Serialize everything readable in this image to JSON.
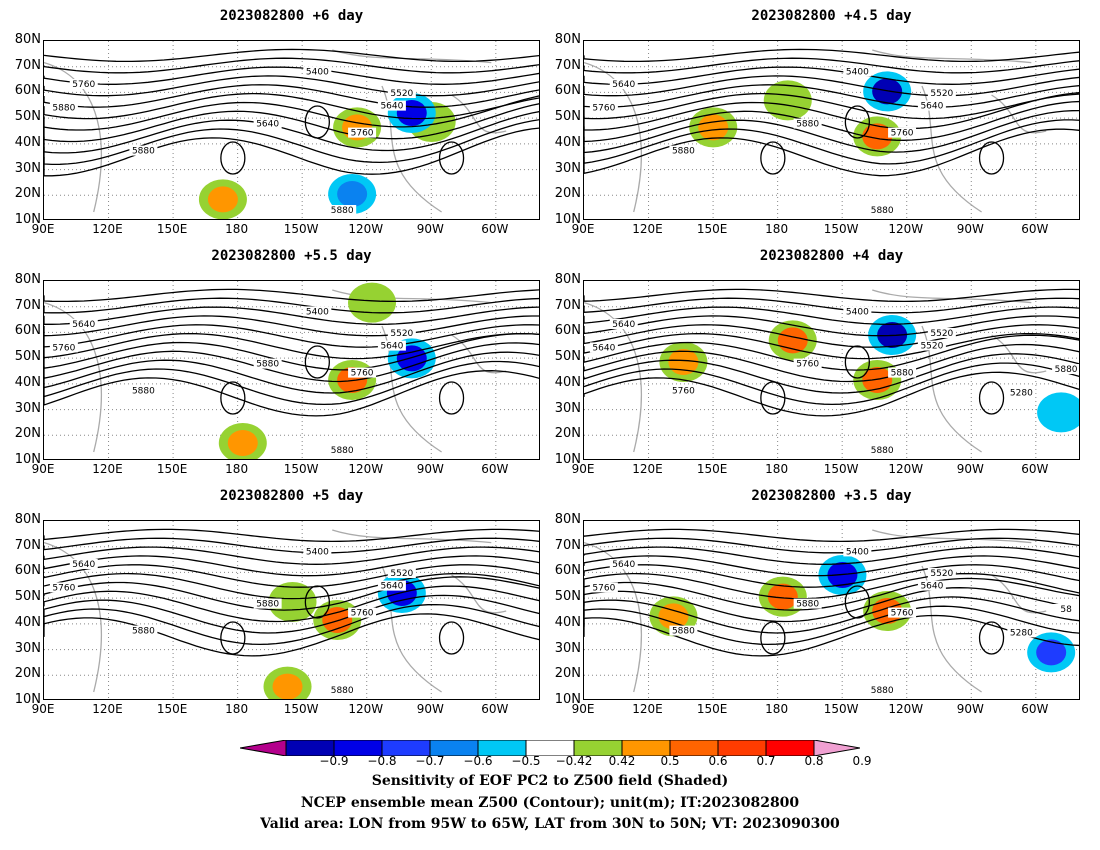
{
  "chart_data": [
    {
      "type": "heatmap",
      "title": "2023082800 +6 day",
      "lat_ticks": [
        "80N",
        "70N",
        "60N",
        "50N",
        "40N",
        "30N",
        "20N",
        "10N"
      ],
      "lon_ticks": [
        "90E",
        "120E",
        "150E",
        "180",
        "150W",
        "120W",
        "90W",
        "60W"
      ],
      "contour_labels": [
        "5400",
        "5520",
        "5640",
        "5760",
        "5880",
        "5640",
        "5760",
        "5880",
        "5880"
      ],
      "shaded": [
        {
          "x": 0.78,
          "y": 0.45,
          "val": 0.5
        },
        {
          "x": 0.36,
          "y": 0.88,
          "val": 0.6
        },
        {
          "x": 0.63,
          "y": 0.48,
          "val": 0.65
        },
        {
          "x": 0.74,
          "y": 0.4,
          "val": -0.8
        },
        {
          "x": 0.62,
          "y": 0.85,
          "val": -0.6
        }
      ]
    },
    {
      "type": "heatmap",
      "title": "2023082800 +4.5 day",
      "lat_ticks": [
        "80N",
        "70N",
        "60N",
        "50N",
        "40N",
        "30N",
        "20N",
        "10N"
      ],
      "lon_ticks": [
        "90E",
        "120E",
        "150E",
        "180",
        "150W",
        "120W",
        "90W",
        "60W"
      ],
      "contour_labels": [
        "5400",
        "5520",
        "5640",
        "5640",
        "5760",
        "5880",
        "5760",
        "5880",
        "5880"
      ],
      "shaded": [
        {
          "x": 0.61,
          "y": 0.28,
          "val": -0.85
        },
        {
          "x": 0.59,
          "y": 0.53,
          "val": 0.75
        },
        {
          "x": 0.26,
          "y": 0.48,
          "val": 0.65
        },
        {
          "x": 0.41,
          "y": 0.33,
          "val": 0.5
        }
      ]
    },
    {
      "type": "heatmap",
      "title": "2023082800 +5.5 day",
      "lat_ticks": [
        "80N",
        "70N",
        "60N",
        "50N",
        "40N",
        "30N",
        "20N",
        "10N"
      ],
      "lon_ticks": [
        "90E",
        "120E",
        "150E",
        "180",
        "150W",
        "120W",
        "90W",
        "60W"
      ],
      "contour_labels": [
        "5400",
        "5520",
        "5640",
        "5640",
        "5760",
        "5880",
        "5760",
        "5880",
        "5880"
      ],
      "shaded": [
        {
          "x": 0.74,
          "y": 0.43,
          "val": -0.8
        },
        {
          "x": 0.62,
          "y": 0.55,
          "val": 0.7
        },
        {
          "x": 0.66,
          "y": 0.12,
          "val": 0.5
        },
        {
          "x": 0.4,
          "y": 0.9,
          "val": 0.6
        }
      ]
    },
    {
      "type": "heatmap",
      "title": "2023082800 +4 day",
      "lat_ticks": [
        "80N",
        "70N",
        "60N",
        "50N",
        "40N",
        "30N",
        "20N",
        "10N"
      ],
      "lon_ticks": [
        "90E",
        "120E",
        "150E",
        "180",
        "150W",
        "120W",
        "90W",
        "60W"
      ],
      "contour_labels": [
        "5400",
        "5520",
        "5520",
        "5640",
        "5640",
        "5760",
        "5880",
        "5760",
        "5880",
        "5280",
        "5880"
      ],
      "shaded": [
        {
          "x": 0.62,
          "y": 0.3,
          "val": -0.85
        },
        {
          "x": 0.59,
          "y": 0.55,
          "val": 0.75
        },
        {
          "x": 0.42,
          "y": 0.33,
          "val": 0.7
        },
        {
          "x": 0.2,
          "y": 0.45,
          "val": 0.6
        },
        {
          "x": 0.96,
          "y": 0.73,
          "val": -0.5
        }
      ]
    },
    {
      "type": "heatmap",
      "title": "2023082800 +5 day",
      "lat_ticks": [
        "80N",
        "70N",
        "60N",
        "50N",
        "40N",
        "30N",
        "20N",
        "10N"
      ],
      "lon_ticks": [
        "90E",
        "120E",
        "150E",
        "180",
        "150W",
        "120W",
        "90W",
        "60W"
      ],
      "contour_labels": [
        "5400",
        "5520",
        "5640",
        "5640",
        "5760",
        "5880",
        "5760",
        "5880",
        "5880"
      ],
      "shaded": [
        {
          "x": 0.72,
          "y": 0.4,
          "val": -0.8
        },
        {
          "x": 0.59,
          "y": 0.55,
          "val": 0.75
        },
        {
          "x": 0.5,
          "y": 0.45,
          "val": 0.5
        },
        {
          "x": 0.49,
          "y": 0.92,
          "val": 0.6
        }
      ]
    },
    {
      "type": "heatmap",
      "title": "2023082800 +3.5 day",
      "lat_ticks": [
        "80N",
        "70N",
        "60N",
        "50N",
        "40N",
        "30N",
        "20N",
        "10N"
      ],
      "lon_ticks": [
        "90E",
        "120E",
        "150E",
        "180",
        "150W",
        "120W",
        "90W",
        "60W"
      ],
      "contour_labels": [
        "5400",
        "5520",
        "5640",
        "5640",
        "5760",
        "5880",
        "5760",
        "5880",
        "5880",
        "5280",
        "58"
      ],
      "shaded": [
        {
          "x": 0.52,
          "y": 0.3,
          "val": -0.8
        },
        {
          "x": 0.4,
          "y": 0.42,
          "val": 0.75
        },
        {
          "x": 0.61,
          "y": 0.5,
          "val": 0.75
        },
        {
          "x": 0.18,
          "y": 0.53,
          "val": 0.6
        },
        {
          "x": 0.94,
          "y": 0.73,
          "val": -0.7
        }
      ]
    }
  ],
  "colorbar": {
    "ticks": [
      "−0.9",
      "−0.8",
      "−0.7",
      "−0.6",
      "−0.5",
      "−0.42",
      "0.42",
      "0.5",
      "0.6",
      "0.7",
      "0.8",
      "0.9"
    ],
    "colors": [
      "#b4008c",
      "#0000b4",
      "#0000e6",
      "#1e3cff",
      "#0a82f0",
      "#00c8f5",
      "#ffffff",
      "#96d232",
      "#ff9600",
      "#ff6400",
      "#ff3c00",
      "#ff0000",
      "#f0a0d2"
    ]
  },
  "captions": {
    "line1": "Sensitivity of EOF PC2 to Z500 field (Shaded)",
    "line2": "NCEP ensemble mean Z500 (Contour); unit(m); IT:2023082800",
    "line3": "Valid area: LON from 95W to 65W, LAT from 30N to 50N; VT: 2023090300"
  }
}
